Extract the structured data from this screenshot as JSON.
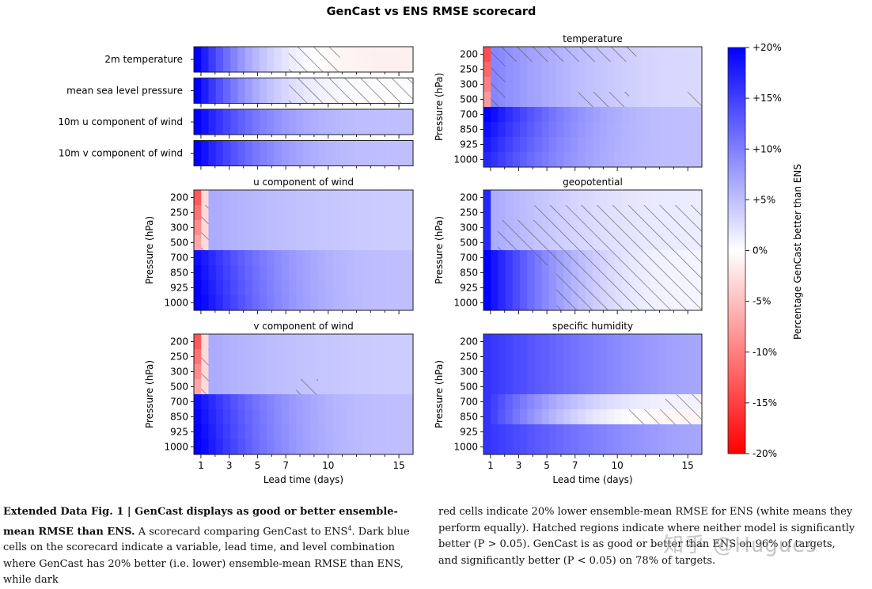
{
  "chart_data": {
    "type": "heatmap",
    "title": "GenCast vs ENS RMSE scorecard",
    "xlabel": "Lead time (days)",
    "ylabel": "Pressure (hPa)",
    "xticks": [
      "1",
      "3",
      "5",
      "7",
      "10",
      "15"
    ],
    "xtick_days": [
      1,
      3,
      5,
      7,
      10,
      15
    ],
    "levels": [
      "200",
      "250",
      "300",
      "500",
      "700",
      "850",
      "925",
      "1000"
    ],
    "surface_variables": [
      "2m temperature",
      "mean sea level pressure",
      "10m u component of wind",
      "10m v component of wind"
    ],
    "panel_titles": [
      "temperature",
      "u component of wind",
      "geopotential",
      "v component of wind",
      "specific humidity"
    ],
    "colorbar": {
      "label": "Percentage GenCast better than ENS",
      "ticks": [
        "+20%",
        "+15%",
        "+10%",
        "+5%",
        "0%",
        "-5%",
        "-10%",
        "-15%",
        "-20%"
      ],
      "range": [
        -20,
        20
      ]
    },
    "estimated_percent_better": {
      "2m temperature": {
        "day1": 20,
        "day3": 8,
        "day7": 2,
        "day10": -1,
        "day15": -1
      },
      "mean sea level pressure": {
        "day1": 20,
        "day3": 7,
        "day7": 1,
        "day15": 0
      },
      "10m u component of wind": {
        "day1": 20,
        "day3": 10,
        "day7": 6,
        "day15": 5
      },
      "10m v component of wind": {
        "day1": 20,
        "day3": 10,
        "day7": 6,
        "day15": 5
      }
    },
    "hatching_meaning": "neither model significantly better (P > 0.05)"
  },
  "caption": {
    "label": "Extended Data Fig. 1 | GenCast displays as good or better ensemble-mean RMSE than ENS.",
    "text_left": "A scorecard comparing GenCast to ENS",
    "ref": "4",
    "text_left_2": ". Dark blue cells on the scorecard indicate a variable, lead time, and level combination where GenCast has 20% better (i.e. lower) ensemble-mean RMSE than ENS, while dark",
    "text_right": "red cells indicate 20% lower ensemble-mean RMSE for ENS (white means they perform equally). Hatched regions indicate where neither model is significantly better (P > 0.05). GenCast is as good or better than ENS on 96% of targets, and significantly better (P < 0.05) on 78% of targets."
  },
  "watermark": "知乎 @Hugues"
}
